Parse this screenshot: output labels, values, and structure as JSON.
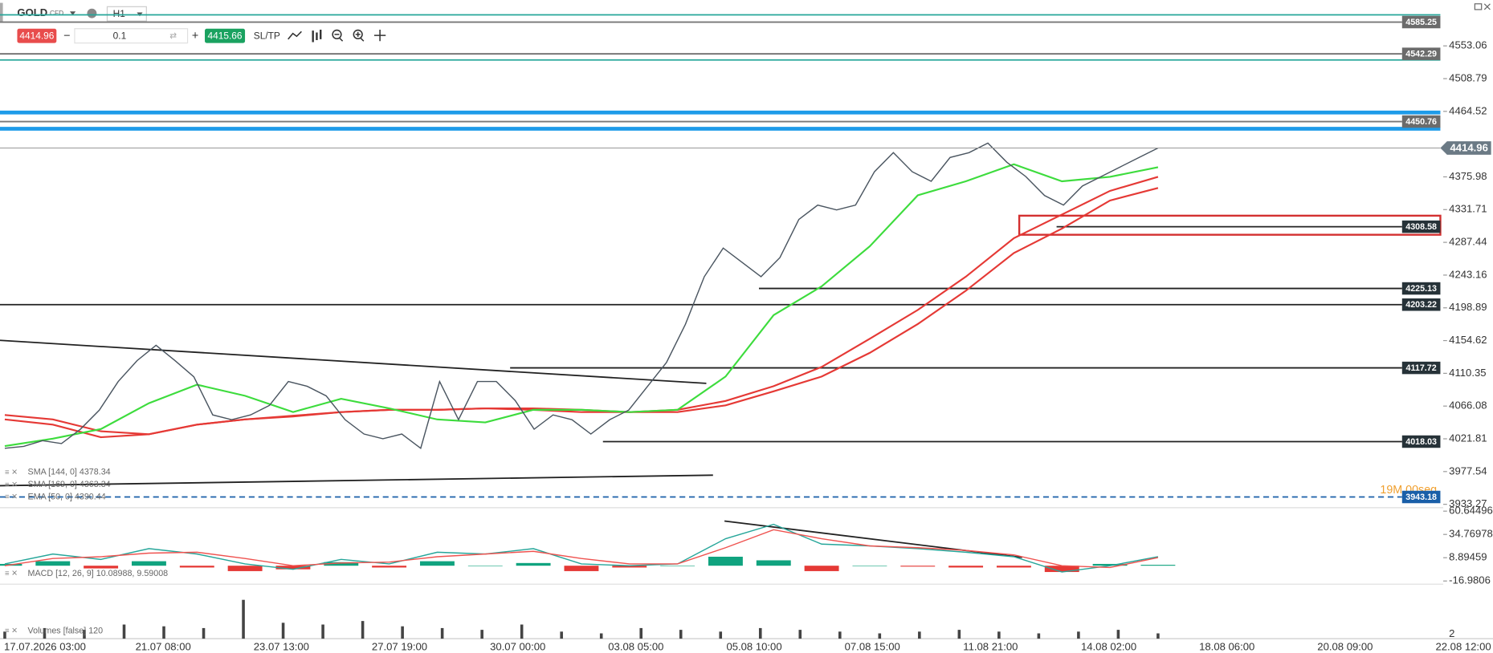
{
  "toolbar": {
    "symbol": "GOLD",
    "badge": "CFD",
    "timeframe": "H1",
    "bid": "4414.96",
    "volume": "0.1",
    "ask": "4415.66",
    "sltp": "SL/TP"
  },
  "chart_data": {
    "type": "line",
    "ylim": [
      3930,
      4597
    ],
    "yticks": [
      4553.06,
      4508.79,
      4464.52,
      4375.98,
      4331.71,
      4287.44,
      4243.16,
      4198.89,
      4154.62,
      4110.35,
      4066.08,
      4021.81,
      3977.54,
      3933.27
    ],
    "x_axis_labels": [
      "17.07.2026 03:00",
      "21.07 08:00",
      "23.07 13:00",
      "27.07 19:00",
      "30.07 00:00",
      "03.08 05:00",
      "05.08 10:00",
      "07.08 15:00",
      "11.08 21:00",
      "14.08 02:00",
      "18.08 06:00",
      "20.08 09:00",
      "22.08 12:00"
    ],
    "price": {
      "color": "#4a5560",
      "values": [
        4009.0,
        4011.6,
        4019.3,
        4015.4,
        4034.8,
        4060.6,
        4099.3,
        4127.6,
        4148.2,
        4127.6,
        4105.7,
        4054.1,
        4047.7,
        4054.1,
        4067.0,
        4099.3,
        4092.8,
        4079.9,
        4047.7,
        4028.3,
        4021.9,
        4028.3,
        4009.0,
        4099.3,
        4047.7,
        4099.3,
        4099.3,
        4073.5,
        4034.8,
        4054.1,
        4047.7,
        4028.3,
        4047.7,
        4060.6,
        4092.8,
        4125.0,
        4176.6,
        4241.0,
        4279.7,
        4260.4,
        4241.0,
        4266.8,
        4318.4,
        4337.8,
        4331.3,
        4337.8,
        4382.9,
        4408.7,
        4382.9,
        4370.0,
        4402.2,
        4408.7,
        4421.6,
        4395.8,
        4376.5,
        4350.7,
        4337.8,
        4363.6,
        4376.5,
        4389.4,
        4402.2,
        4414.96
      ]
    },
    "indicators": [
      {
        "label": "SMA [144, 0] 4378.34",
        "color": "#e53935",
        "values": [
          4054,
          4048,
          4032,
          4028,
          4041,
          4048,
          4052,
          4058,
          4061,
          4061,
          4063,
          4063,
          4061,
          4058,
          4061,
          4073,
          4093,
          4119,
          4157,
          4196,
          4241,
          4293,
          4325,
          4357,
          4376
        ]
      },
      {
        "label": "SMA [169, 0] 4363.34",
        "color": "#e53935",
        "values": [
          4048,
          4041,
          4024,
          4028,
          4041,
          4048,
          4053,
          4058,
          4061,
          4061,
          4063,
          4061,
          4058,
          4058,
          4058,
          4067,
          4086,
          4106,
          4138,
          4177,
          4222,
          4273,
          4306,
          4344,
          4361
        ]
      },
      {
        "label": "EMA [50, 0] 4390.44",
        "color": "#3ddc3d",
        "values": [
          4012,
          4022,
          4035,
          4070,
          4095,
          4080,
          4058,
          4076,
          4063,
          4048,
          4044,
          4061,
          4061,
          4058,
          4061,
          4106,
          4189,
          4228,
          4282,
          4351,
          4370,
          4393,
          4370,
          4376,
          4389
        ]
      }
    ],
    "levels": [
      4585.25,
      4542.29,
      4450.76,
      4308.58,
      4225.13,
      4203.22,
      4117.72,
      4018.03
    ],
    "current_price": 4414.96,
    "marker_level": 3943.18,
    "green_lines": [
      4595,
      4534
    ],
    "blue_lines": [
      4463,
      4441
    ],
    "zone": [
      4323.5,
      4297.7
    ],
    "countdown": "19M 00seg",
    "macd": {
      "label": "MACD [12, 26, 9] 10.08988, 9.59008",
      "ylim": [
        -20.5,
        64.5
      ],
      "yticks": [
        60.64496,
        34.76978,
        8.89459,
        -16.9806
      ],
      "macd": [
        2,
        13,
        7,
        19,
        13,
        2,
        -4,
        7,
        2,
        15,
        13,
        19,
        2,
        0,
        2,
        30,
        46,
        24,
        22,
        19,
        15,
        10,
        -7,
        0,
        10
      ],
      "signal": [
        0,
        8,
        10,
        14,
        15,
        8,
        0,
        3,
        4,
        10,
        13,
        16,
        8,
        2,
        2,
        20,
        40,
        30,
        22,
        20,
        17,
        12,
        0,
        -2,
        9
      ],
      "histogram": [
        2,
        5,
        -3,
        5,
        -2,
        -6,
        -4,
        4,
        -2,
        5,
        0,
        3,
        -6,
        -2,
        0,
        10,
        6,
        -6,
        0,
        -1,
        -2,
        -2,
        -7,
        2,
        1
      ]
    },
    "volume": {
      "label": "Volumes [false] 120",
      "ylim": [
        0,
        130
      ],
      "yticks": [
        2
      ],
      "values": [
        20,
        30,
        25,
        40,
        35,
        30,
        110,
        45,
        40,
        50,
        35,
        30,
        25,
        40,
        20,
        15,
        30,
        25,
        20,
        30,
        25,
        20,
        15,
        20,
        25,
        20,
        15,
        20,
        25,
        15
      ]
    }
  }
}
